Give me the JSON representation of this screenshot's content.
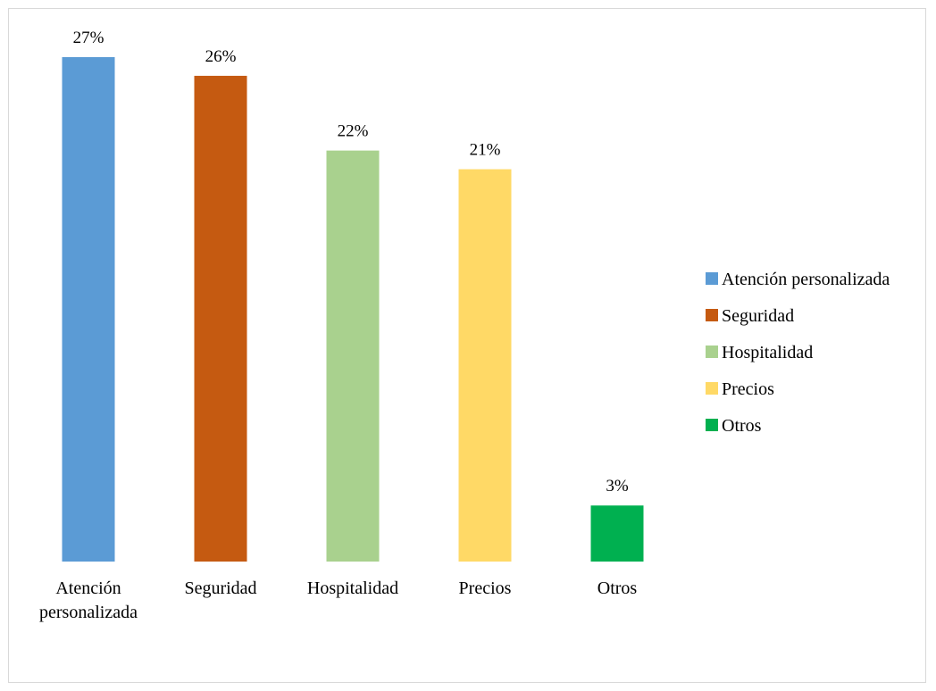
{
  "chart_data": {
    "type": "bar",
    "title": "",
    "xlabel": "",
    "ylabel": "",
    "ylim": [
      0,
      27
    ],
    "grid": false,
    "legend_position": "right",
    "categories": [
      [
        "Atención",
        "personalizada"
      ],
      [
        "Seguridad"
      ],
      [
        "Hospitalidad"
      ],
      [
        "Precios"
      ],
      [
        "Otros"
      ]
    ],
    "values": [
      27,
      26,
      22,
      21,
      3
    ],
    "data_labels": [
      "27%",
      "26%",
      "22%",
      "21%",
      "3%"
    ],
    "colors": [
      "#5b9bd5",
      "#c55a11",
      "#a9d18e",
      "#ffd966",
      "#00b050"
    ],
    "legend": [
      "Atención personalizada",
      "Seguridad",
      "Hospitalidad",
      "Precios",
      "Otros"
    ]
  }
}
